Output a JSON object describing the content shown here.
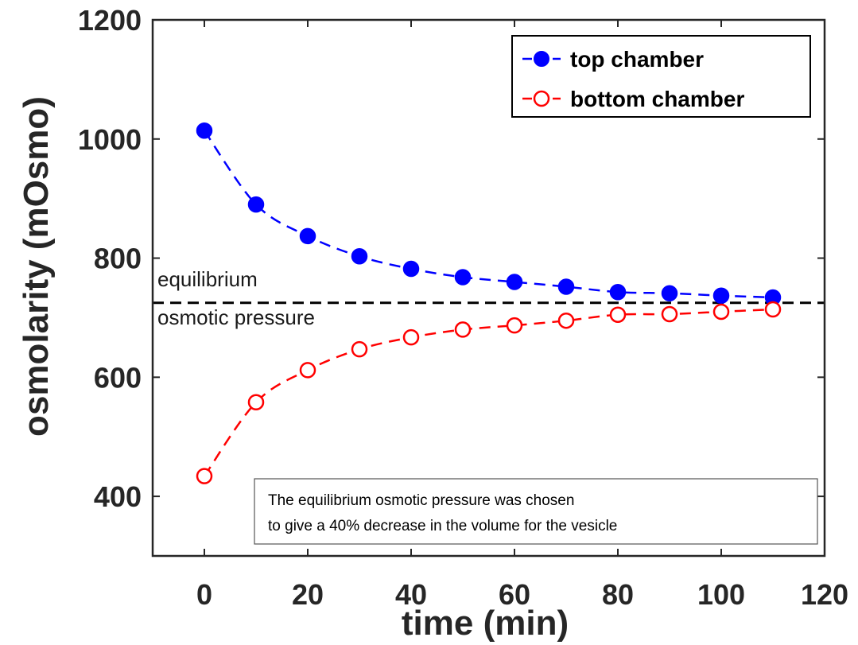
{
  "chart_data": {
    "type": "line",
    "xlabel": "time (min)",
    "ylabel": "osmolarity (mOsmo)",
    "xlim": [
      -10,
      120
    ],
    "ylim": [
      300,
      1200
    ],
    "xticks": [
      0,
      20,
      40,
      60,
      80,
      100,
      120
    ],
    "yticks": [
      400,
      600,
      800,
      1000,
      1200
    ],
    "grid": false,
    "legend_position": "top-right",
    "x": [
      0,
      10,
      20,
      30,
      40,
      50,
      60,
      70,
      80,
      90,
      100,
      110
    ],
    "series": [
      {
        "name": "top chamber",
        "color": "#0000ff",
        "marker": "filled-circle",
        "line": "dashed",
        "values": [
          1014,
          890,
          837,
          803,
          782,
          768,
          760,
          752,
          743,
          741,
          737,
          734
        ]
      },
      {
        "name": "bottom chamber",
        "color": "#ff0000",
        "marker": "open-circle",
        "line": "dashed",
        "values": [
          434,
          558,
          612,
          647,
          667,
          680,
          687,
          695,
          705,
          706,
          710,
          714
        ]
      }
    ],
    "reference_line": {
      "y": 725,
      "color": "#000000",
      "line": "dashed"
    },
    "annotations": [
      {
        "text": "equilibrium"
      },
      {
        "text": "osmotic pressure"
      }
    ],
    "note": {
      "lines": [
        "The equilibrium osmotic pressure was chosen",
        "to give a 40% decrease in the volume for the vesicle"
      ]
    }
  }
}
